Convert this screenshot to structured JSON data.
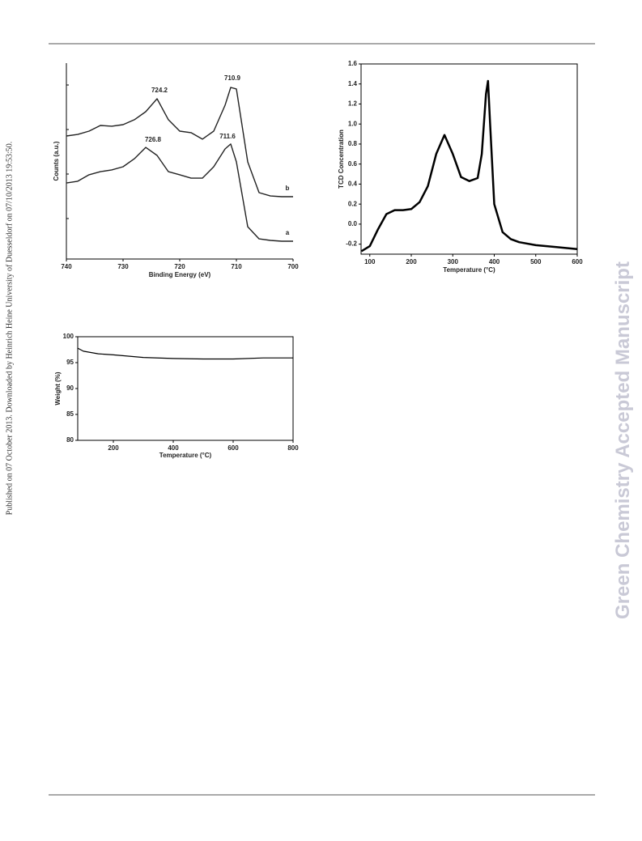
{
  "sidebar": "Published on 07 October 2013. Downloaded by Heinrich Heine University of Duesseldorf on 07/10/2013 19:53:50.",
  "watermark": "Green Chemistry Accepted Manuscript",
  "chart_data": [
    {
      "type": "line",
      "xlabel": "Binding Energy (eV)",
      "ylabel": "Counts (a.u.)",
      "x": [
        740,
        738,
        736,
        734,
        732,
        730,
        728,
        726,
        724,
        722,
        720,
        718,
        716,
        714,
        712,
        711,
        710,
        708,
        706,
        704,
        702,
        700
      ],
      "series": [
        {
          "name": "b",
          "color": "#222222",
          "values": [
            62.8,
            63.6,
            65.3,
            68.2,
            67.8,
            68.6,
            71.1,
            75.2,
            81.8,
            71.1,
            65.3,
            64.5,
            61.2,
            65.3,
            78.5,
            87.6,
            86.8,
            49.6,
            33.9,
            32.2,
            31.8,
            31.8
          ]
        },
        {
          "name": "a",
          "color": "#222222",
          "values": [
            38.8,
            39.7,
            43.0,
            44.6,
            45.5,
            47.1,
            51.2,
            57.0,
            52.9,
            44.6,
            43.0,
            41.3,
            41.3,
            47.1,
            56.2,
            58.7,
            49.6,
            16.5,
            10.3,
            9.5,
            9.1,
            9.1
          ]
        }
      ],
      "annotations": [
        "724.2",
        "710.9",
        "726.8",
        "711.6"
      ],
      "xlim": [
        740,
        700
      ],
      "ylim": [
        0,
        100
      ],
      "xticks": [
        740,
        730,
        720,
        710,
        700
      ]
    },
    {
      "type": "line",
      "xlabel": "Temperature (°C)",
      "ylabel": "TCD Concentration",
      "x": [
        80,
        100,
        120,
        140,
        160,
        180,
        200,
        220,
        240,
        260,
        280,
        300,
        320,
        340,
        360,
        370,
        380,
        385,
        390,
        400,
        420,
        440,
        460,
        500,
        550,
        600
      ],
      "series": [
        {
          "color": "#000000",
          "values": [
            -0.27,
            -0.22,
            -0.05,
            0.1,
            0.14,
            0.14,
            0.15,
            0.22,
            0.38,
            0.7,
            0.89,
            0.7,
            0.47,
            0.43,
            0.46,
            0.7,
            1.3,
            1.43,
            1.0,
            0.2,
            -0.08,
            -0.15,
            -0.18,
            -0.21,
            -0.23,
            -0.25
          ]
        }
      ],
      "xlim": [
        79,
        600
      ],
      "ylim": [
        -0.3,
        1.6
      ],
      "xticks": [
        100,
        200,
        300,
        400,
        500,
        600
      ],
      "yticks": [
        {
          "value": -0.2,
          "label": "-0.2"
        },
        {
          "value": 0,
          "label": "0.0"
        },
        0.2,
        0.4,
        0.6,
        0.8,
        {
          "value": 1,
          "label": "1.0"
        },
        1.2,
        1.4,
        1.6
      ]
    },
    {
      "type": "line",
      "xlabel": "Temperature (°C)",
      "ylabel": "Weight (%)",
      "x": [
        81,
        100,
        150,
        200,
        300,
        400,
        500,
        600,
        700,
        800
      ],
      "series": [
        {
          "color": "#000000",
          "values": [
            97.8,
            97.2,
            96.7,
            96.5,
            96.0,
            95.8,
            95.7,
            95.7,
            95.9,
            95.9
          ]
        }
      ],
      "xlim": [
        81,
        800
      ],
      "ylim": [
        80,
        100
      ],
      "xticks": [
        200,
        400,
        600,
        800
      ],
      "yticks": [
        80,
        85,
        90,
        95,
        100
      ]
    }
  ]
}
